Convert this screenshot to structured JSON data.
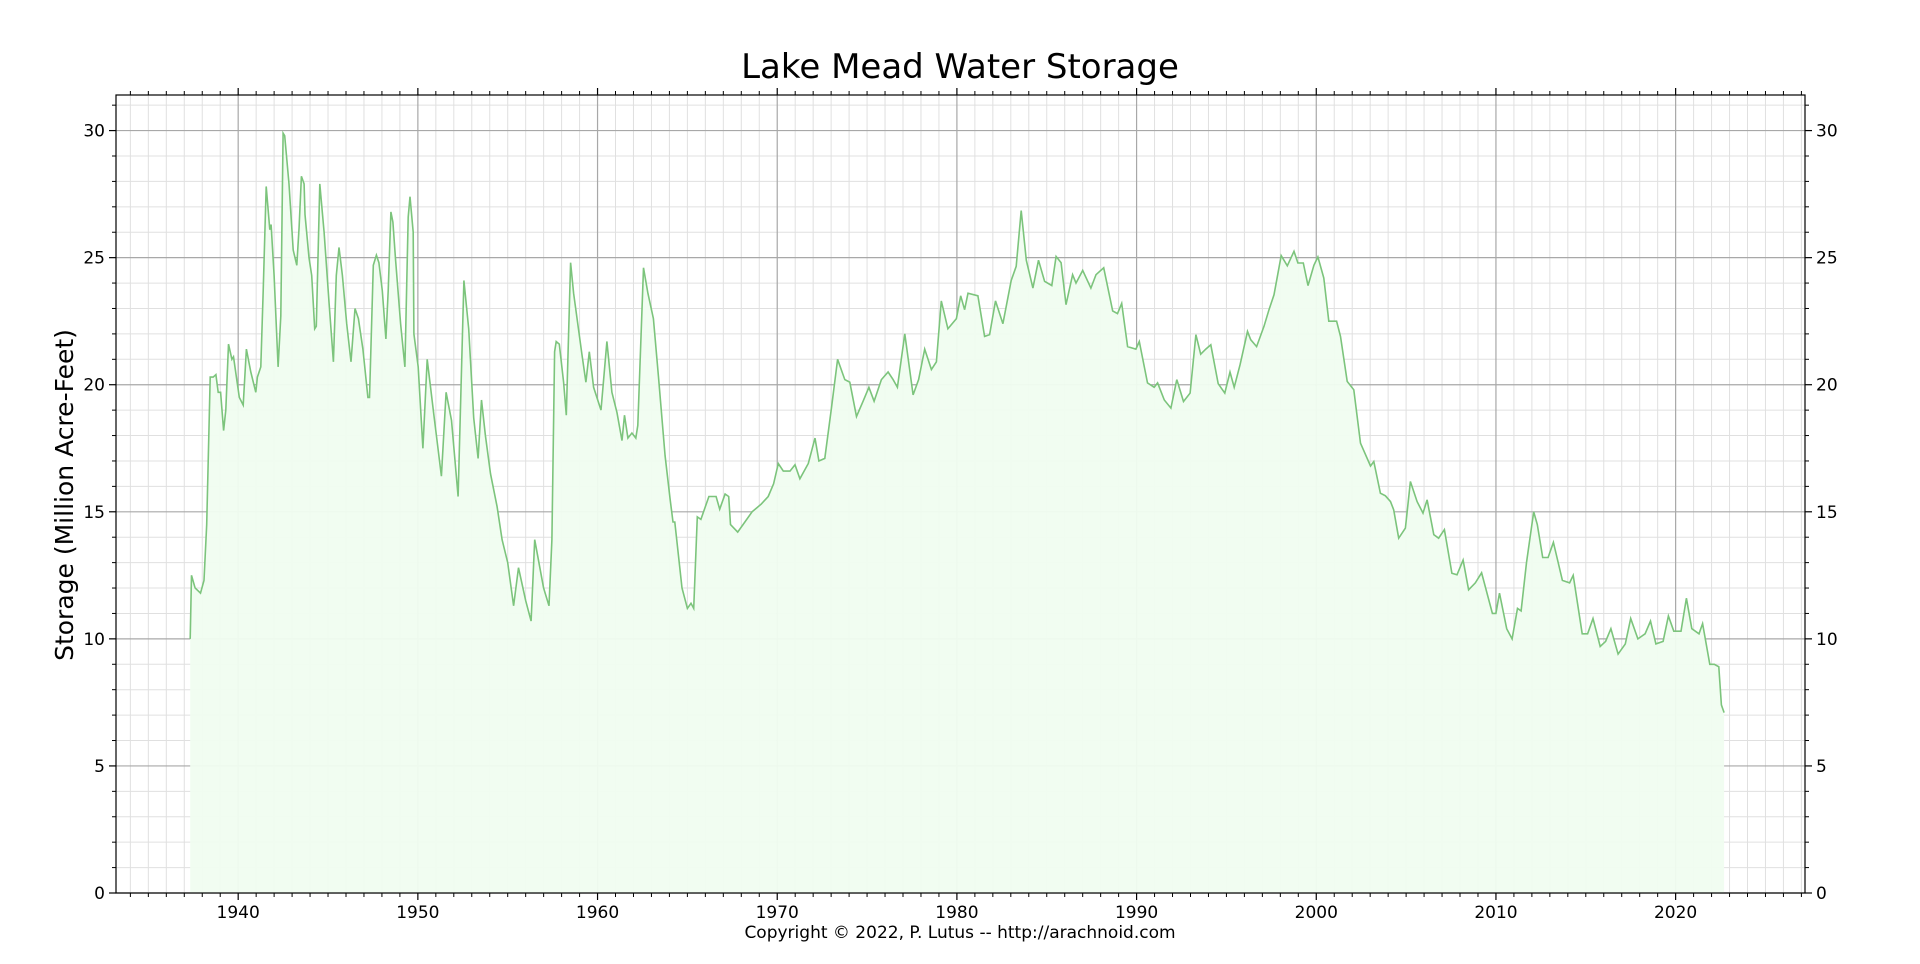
{
  "chart_data": {
    "type": "area",
    "title": "Lake Mead Water Storage",
    "xlabel": "",
    "ylabel": "Storage (Million Acre-Feet)",
    "footer": "Copyright © 2022, P. Lutus -- http://arachnoid.com",
    "xlim": [
      1933.2,
      2027.2
    ],
    "ylim": [
      0,
      31.4
    ],
    "xticks": [
      1940,
      1950,
      1960,
      1970,
      1980,
      1990,
      2000,
      2010,
      2020
    ],
    "yticks": [
      0,
      5,
      10,
      15,
      20,
      25,
      30
    ],
    "grid": true,
    "minor_grid": true,
    "colors": {
      "line": "#7cc47c",
      "fill": "#f0fdf0",
      "major_grid": "#a8a8a8",
      "minor_grid": "#e0e0e0"
    },
    "x": [
      1937.33,
      1937.4,
      1937.6,
      1937.9,
      1938.1,
      1938.25,
      1938.44,
      1938.61,
      1938.76,
      1938.89,
      1939.02,
      1939.19,
      1939.31,
      1939.46,
      1939.65,
      1939.74,
      1940.06,
      1940.28,
      1940.46,
      1940.7,
      1940.98,
      1941.07,
      1941.26,
      1941.39,
      1941.56,
      1941.76,
      1941.83,
      1942.0,
      1942.22,
      1942.37,
      1942.5,
      1942.59,
      1942.83,
      1943.06,
      1943.26,
      1943.39,
      1943.52,
      1943.67,
      1943.72,
      1943.94,
      1944.09,
      1944.26,
      1944.35,
      1944.54,
      1944.78,
      1945.06,
      1945.3,
      1945.46,
      1945.61,
      1945.8,
      1946.04,
      1946.28,
      1946.5,
      1946.69,
      1946.94,
      1947.22,
      1947.31,
      1947.52,
      1947.69,
      1947.83,
      1948.02,
      1948.22,
      1948.35,
      1948.5,
      1948.61,
      1948.76,
      1949.04,
      1949.28,
      1949.46,
      1949.56,
      1949.74,
      1949.78,
      1950.02,
      1950.28,
      1950.52,
      1950.89,
      1951.31,
      1951.57,
      1951.87,
      1952.24,
      1952.56,
      1952.83,
      1953.11,
      1953.35,
      1953.54,
      1953.76,
      1954.04,
      1954.41,
      1954.69,
      1955.0,
      1955.33,
      1955.6,
      1956.0,
      1956.3,
      1956.5,
      1957.0,
      1957.3,
      1957.46,
      1957.61,
      1957.7,
      1957.87,
      1958.11,
      1958.26,
      1958.5,
      1958.67,
      1959.13,
      1959.35,
      1959.54,
      1959.78,
      1960.19,
      1960.52,
      1960.8,
      1961.08,
      1961.36,
      1961.5,
      1961.69,
      1961.91,
      1962.13,
      1962.24,
      1962.56,
      1962.8,
      1963.11,
      1963.39,
      1963.76,
      1964.04,
      1964.2,
      1964.3,
      1964.7,
      1965.0,
      1965.2,
      1965.35,
      1965.55,
      1965.75,
      1966.2,
      1966.6,
      1966.8,
      1967.1,
      1967.3,
      1967.4,
      1967.8,
      1968.1,
      1968.6,
      1969.1,
      1969.5,
      1969.8,
      1970.06,
      1970.34,
      1970.71,
      1970.99,
      1971.26,
      1971.73,
      1972.1,
      1972.32,
      1972.65,
      1973.02,
      1973.36,
      1973.76,
      1974.04,
      1974.41,
      1974.78,
      1975.1,
      1975.39,
      1975.8,
      1976.17,
      1976.45,
      1976.69,
      1977.1,
      1977.56,
      1977.87,
      1978.21,
      1978.58,
      1978.86,
      1979.13,
      1979.5,
      1979.97,
      1980.21,
      1980.43,
      1980.62,
      1981.17,
      1981.54,
      1981.82,
      1982.15,
      1982.56,
      1983.02,
      1983.3,
      1983.58,
      1983.86,
      1984.23,
      1984.54,
      1984.88,
      1985.28,
      1985.52,
      1985.8,
      1986.07,
      1986.44,
      1986.63,
      1987.0,
      1987.46,
      1987.74,
      1988.17,
      1988.67,
      1988.94,
      1989.17,
      1989.5,
      1989.96,
      1990.15,
      1990.61,
      1990.98,
      1991.17,
      1991.54,
      1991.91,
      1992.24,
      1992.61,
      1992.98,
      1993.3,
      1993.57,
      1993.85,
      1994.13,
      1994.54,
      1994.91,
      1995.2,
      1995.43,
      1995.76,
      1996.17,
      1996.35,
      1996.68,
      1997.09,
      1997.37,
      1997.65,
      1998.05,
      1998.39,
      1998.76,
      1998.98,
      1999.28,
      1999.54,
      1999.87,
      2000.09,
      2000.42,
      2000.7,
      2001.13,
      2001.35,
      2001.72,
      2002.09,
      2002.46,
      2003.02,
      2003.2,
      2003.57,
      2003.85,
      2004.13,
      2004.31,
      2004.59,
      2004.96,
      2005.24,
      2005.61,
      2005.94,
      2006.17,
      2006.54,
      2006.81,
      2007.13,
      2007.55,
      2007.83,
      2008.17,
      2008.48,
      2008.85,
      2009.2,
      2009.8,
      2010.0,
      2010.2,
      2010.6,
      2010.9,
      2011.2,
      2011.4,
      2011.7,
      2012.1,
      2012.3,
      2012.6,
      2012.9,
      2013.2,
      2013.7,
      2014.1,
      2014.3,
      2014.8,
      2015.1,
      2015.4,
      2015.8,
      2016.1,
      2016.4,
      2016.8,
      2017.2,
      2017.5,
      2017.9,
      2018.3,
      2018.6,
      2018.9,
      2019.3,
      2019.6,
      2019.9,
      2020.3,
      2020.6,
      2020.9,
      2021.3,
      2021.5,
      2021.9,
      2022.15,
      2022.4,
      2022.55,
      2022.7
    ],
    "values": [
      10.0,
      12.5,
      12.0,
      11.8,
      12.3,
      14.5,
      20.3,
      20.3,
      20.4,
      19.7,
      19.7,
      18.2,
      19.0,
      21.6,
      21.0,
      21.1,
      19.5,
      19.2,
      21.4,
      20.5,
      19.7,
      20.3,
      20.7,
      23.7,
      27.8,
      26.1,
      26.3,
      24.3,
      20.7,
      22.7,
      29.9,
      29.8,
      27.9,
      25.3,
      24.7,
      26.2,
      28.2,
      27.9,
      26.7,
      25.0,
      24.3,
      22.2,
      22.3,
      27.9,
      26.0,
      23.2,
      20.9,
      24.3,
      25.4,
      24.3,
      22.4,
      20.9,
      23.0,
      22.6,
      21.4,
      19.5,
      19.5,
      24.7,
      25.1,
      24.8,
      23.7,
      21.8,
      23.7,
      26.8,
      26.4,
      24.9,
      22.4,
      20.7,
      26.6,
      27.4,
      26.0,
      22.0,
      20.7,
      17.5,
      21.0,
      18.8,
      16.4,
      19.7,
      18.6,
      15.6,
      24.1,
      22.2,
      18.7,
      17.1,
      19.4,
      18.0,
      16.5,
      15.2,
      13.9,
      13.0,
      11.3,
      12.8,
      11.5,
      10.7,
      13.9,
      12.0,
      11.3,
      13.9,
      21.3,
      21.7,
      21.6,
      20.1,
      18.8,
      24.8,
      23.6,
      21.2,
      20.1,
      21.3,
      19.9,
      19.0,
      21.7,
      19.7,
      18.9,
      17.8,
      18.8,
      17.9,
      18.1,
      17.9,
      18.4,
      24.6,
      23.6,
      22.6,
      20.3,
      17.2,
      15.5,
      14.6,
      14.6,
      12.0,
      11.2,
      11.4,
      11.2,
      14.8,
      14.7,
      15.6,
      15.6,
      15.1,
      15.7,
      15.6,
      14.5,
      14.2,
      14.5,
      15.0,
      15.3,
      15.6,
      16.1,
      16.9,
      16.6,
      16.6,
      16.85,
      16.3,
      16.9,
      17.9,
      17.0,
      17.1,
      19.1,
      21.0,
      20.2,
      20.1,
      18.75,
      19.35,
      19.9,
      19.35,
      20.2,
      20.5,
      20.2,
      19.9,
      22.0,
      19.6,
      20.2,
      21.4,
      20.6,
      20.9,
      23.3,
      22.2,
      22.6,
      23.5,
      22.95,
      23.6,
      23.5,
      21.9,
      21.97,
      23.3,
      22.4,
      24.1,
      24.66,
      26.85,
      24.9,
      23.8,
      24.9,
      24.07,
      23.9,
      25.05,
      24.8,
      23.15,
      24.33,
      24.0,
      24.5,
      23.8,
      24.33,
      24.6,
      22.9,
      22.8,
      23.2,
      21.5,
      21.4,
      21.7,
      20.07,
      19.9,
      20.07,
      19.4,
      19.08,
      20.2,
      19.34,
      19.67,
      21.97,
      21.2,
      21.4,
      21.57,
      20.04,
      19.67,
      20.5,
      19.9,
      20.79,
      22.1,
      21.77,
      21.5,
      22.3,
      22.95,
      23.54,
      25.08,
      24.68,
      25.25,
      24.79,
      24.79,
      23.9,
      24.7,
      25.03,
      24.2,
      22.5,
      22.5,
      21.9,
      20.13,
      19.8,
      17.7,
      16.8,
      16.98,
      15.73,
      15.63,
      15.4,
      15.08,
      13.96,
      14.36,
      16.19,
      15.4,
      14.95,
      15.47,
      14.1,
      13.96,
      14.3,
      12.58,
      12.52,
      13.1,
      11.93,
      12.2,
      12.6,
      11.0,
      11.0,
      11.8,
      10.4,
      10.0,
      11.2,
      11.1,
      13.0,
      15.0,
      14.5,
      13.2,
      13.2,
      13.8,
      12.3,
      12.2,
      12.5,
      10.2,
      10.2,
      10.8,
      9.7,
      9.9,
      10.4,
      9.4,
      9.8,
      10.8,
      10.0,
      10.2,
      10.7,
      9.8,
      9.9,
      10.9,
      10.3,
      10.3,
      11.6,
      10.4,
      10.2,
      10.6,
      9.0,
      9.0,
      8.9,
      7.4,
      7.1
    ]
  }
}
